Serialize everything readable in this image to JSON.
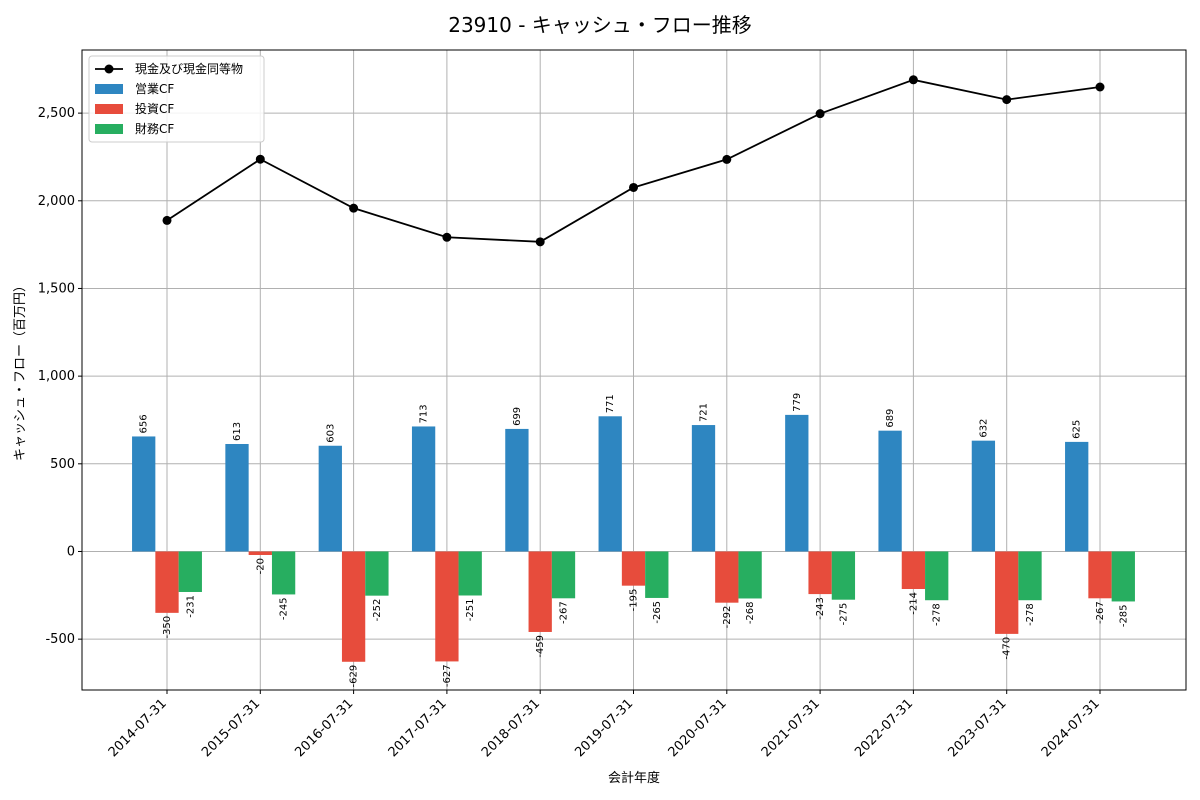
{
  "chart_data": {
    "type": "bar",
    "title": "23910 - キャッシュ・フロー推移",
    "xlabel": "会計年度",
    "ylabel": "キャッシュ・フロー（百万円）",
    "categories": [
      "2014-07-31",
      "2015-07-31",
      "2016-07-31",
      "2017-07-31",
      "2018-07-31",
      "2019-07-31",
      "2020-07-31",
      "2021-07-31",
      "2022-07-31",
      "2023-07-31",
      "2024-07-31"
    ],
    "ylim": [
      -790,
      2860
    ],
    "yticks": [
      -500,
      0,
      500,
      1000,
      1500,
      2000,
      2500
    ],
    "ytick_labels": [
      "-500",
      "0",
      "500",
      "1,000",
      "1,500",
      "2,000",
      "2,500"
    ],
    "grid": true,
    "legend_position": "top-left",
    "series": [
      {
        "name": "営業CF",
        "kind": "bar",
        "color": "#2e86c1",
        "values": [
          656,
          613,
          603,
          713,
          699,
          771,
          721,
          779,
          689,
          632,
          625
        ]
      },
      {
        "name": "投資CF",
        "kind": "bar",
        "color": "#e74c3c",
        "values": [
          -350,
          -20,
          -629,
          -627,
          -459,
          -195,
          -292,
          -243,
          -214,
          -470,
          -267
        ]
      },
      {
        "name": "財務CF",
        "kind": "bar",
        "color": "#27ae60",
        "values": [
          -231,
          -245,
          -252,
          -251,
          -267,
          -265,
          -268,
          -275,
          -278,
          -278,
          -285
        ]
      },
      {
        "name": "現金及び現金同等物",
        "kind": "line",
        "color": "#000000",
        "values": [
          1888,
          2237,
          1958,
          1792,
          1766,
          2076,
          2236,
          2497,
          2690,
          2577,
          2649
        ]
      }
    ]
  }
}
